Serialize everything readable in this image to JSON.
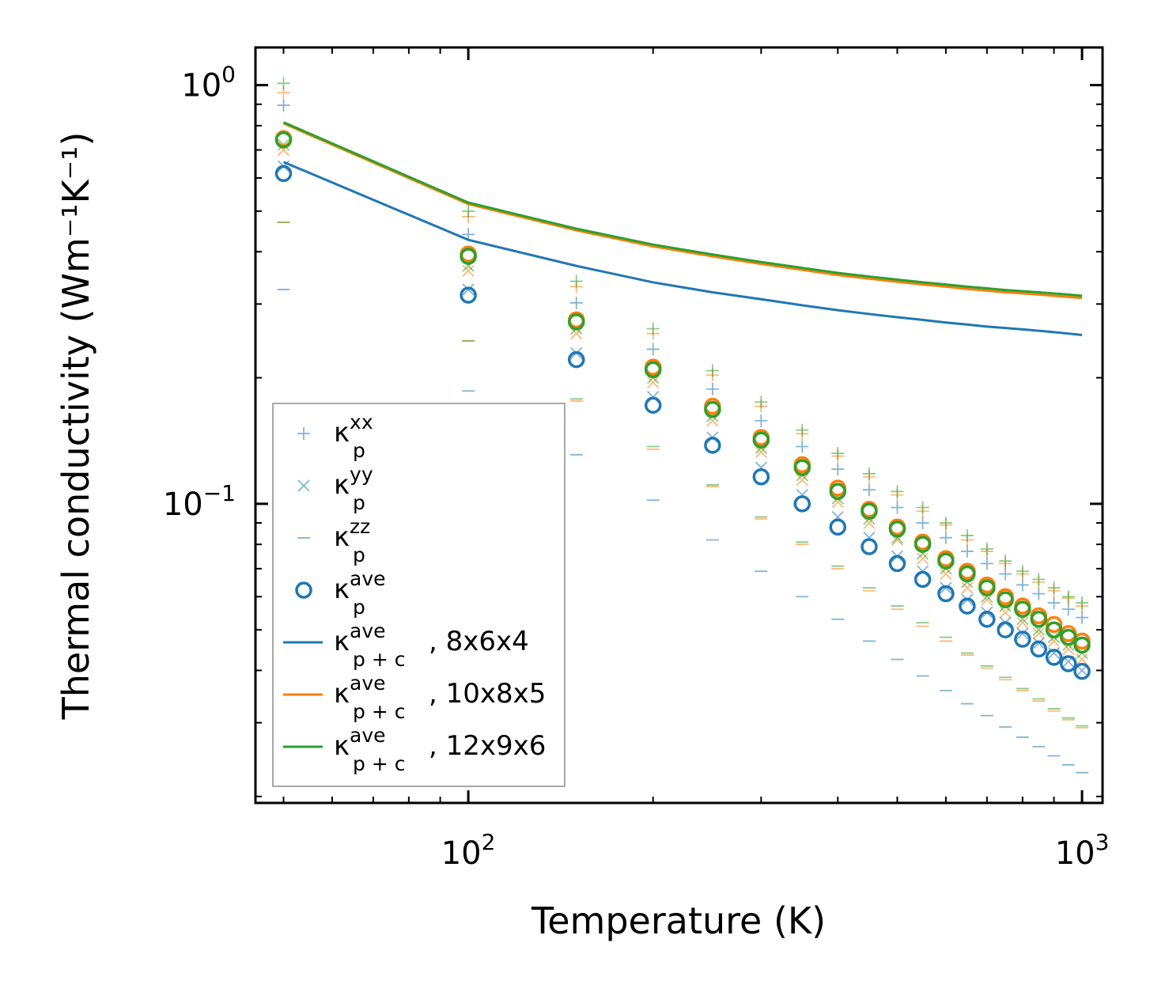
{
  "chart_data": {
    "type": "scatter+line",
    "xscale": "log",
    "yscale": "log",
    "xlabel": "Temperature (K)",
    "ylabel": "Thermal conductivity (Wm⁻¹K⁻¹)",
    "xlim": [
      45,
      1080
    ],
    "ylim": [
      0.0193,
      1.23
    ],
    "x_ticks": [
      {
        "value": 100,
        "base": "10",
        "exp": "2"
      },
      {
        "value": 1000,
        "base": "10",
        "exp": "3"
      }
    ],
    "y_ticks": [
      {
        "value": 1.0,
        "base": "10",
        "exp": "0"
      },
      {
        "value": 0.1,
        "base": "10",
        "exp": "−1"
      }
    ],
    "legend_position": "lower-left",
    "colors": {
      "blue": "#1f77b4",
      "orange": "#ff7f0e",
      "green": "#2ca02c"
    },
    "x": [
      50,
      100,
      150,
      200,
      250,
      300,
      350,
      400,
      450,
      500,
      550,
      600,
      650,
      700,
      750,
      800,
      850,
      900,
      950,
      1000
    ],
    "series": [
      {
        "name": "8x6x4",
        "color": "#1f77b4",
        "kind": "markers",
        "xx": [
          0.895,
          0.44,
          0.302,
          0.234,
          0.188,
          0.158,
          0.137,
          0.121,
          0.108,
          0.098,
          0.09,
          0.083,
          0.077,
          0.072,
          0.068,
          0.064,
          0.061,
          0.058,
          0.056,
          0.0535
        ],
        "yy": [
          0.64,
          0.325,
          0.229,
          0.18,
          0.144,
          0.122,
          0.105,
          0.093,
          0.083,
          0.075,
          0.069,
          0.063,
          0.059,
          0.055,
          0.052,
          0.049,
          0.0465,
          0.044,
          0.042,
          0.04
        ],
        "zz": [
          0.325,
          0.186,
          0.131,
          0.102,
          0.082,
          0.069,
          0.06,
          0.053,
          0.047,
          0.0425,
          0.0388,
          0.0358,
          0.0333,
          0.0312,
          0.0293,
          0.0277,
          0.0263,
          0.025,
          0.0238,
          0.0228
        ],
        "ave": [
          0.615,
          0.315,
          0.221,
          0.172,
          0.138,
          0.116,
          0.1,
          0.088,
          0.079,
          0.072,
          0.066,
          0.061,
          0.057,
          0.053,
          0.05,
          0.0475,
          0.045,
          0.043,
          0.0415,
          0.0398
        ]
      },
      {
        "name": "10x8x5",
        "color": "#ff7f0e",
        "kind": "markers",
        "xx": [
          0.96,
          0.485,
          0.33,
          0.255,
          0.203,
          0.171,
          0.147,
          0.13,
          0.116,
          0.105,
          0.096,
          0.089,
          0.082,
          0.077,
          0.072,
          0.068,
          0.065,
          0.062,
          0.0595,
          0.057
        ],
        "yy": [
          0.7,
          0.36,
          0.255,
          0.195,
          0.158,
          0.133,
          0.114,
          0.101,
          0.09,
          0.082,
          0.074,
          0.068,
          0.063,
          0.059,
          0.055,
          0.052,
          0.049,
          0.047,
          0.045,
          0.0425
        ],
        "zz": [
          0.47,
          0.245,
          0.176,
          0.135,
          0.11,
          0.092,
          0.08,
          0.07,
          0.062,
          0.056,
          0.051,
          0.047,
          0.0435,
          0.0405,
          0.038,
          0.0358,
          0.0338,
          0.032,
          0.0305,
          0.0292
        ],
        "ave": [
          0.745,
          0.395,
          0.275,
          0.212,
          0.171,
          0.144,
          0.124,
          0.109,
          0.097,
          0.088,
          0.081,
          0.074,
          0.069,
          0.064,
          0.06,
          0.057,
          0.054,
          0.0515,
          0.049,
          0.047
        ]
      },
      {
        "name": "12x9x6",
        "color": "#2ca02c",
        "kind": "markers",
        "xx": [
          1.01,
          0.5,
          0.34,
          0.262,
          0.208,
          0.175,
          0.15,
          0.132,
          0.118,
          0.107,
          0.098,
          0.09,
          0.084,
          0.078,
          0.073,
          0.069,
          0.066,
          0.063,
          0.06,
          0.058
        ],
        "yy": [
          0.72,
          0.37,
          0.262,
          0.2,
          0.162,
          0.136,
          0.117,
          0.103,
          0.092,
          0.083,
          0.076,
          0.07,
          0.065,
          0.06,
          0.057,
          0.053,
          0.05,
          0.048,
          0.046,
          0.044
        ],
        "zz": [
          0.47,
          0.245,
          0.178,
          0.137,
          0.111,
          0.093,
          0.081,
          0.071,
          0.063,
          0.057,
          0.052,
          0.048,
          0.044,
          0.041,
          0.0385,
          0.0362,
          0.0342,
          0.0324,
          0.0308,
          0.0295
        ],
        "ave": [
          0.74,
          0.39,
          0.272,
          0.209,
          0.168,
          0.142,
          0.122,
          0.107,
          0.096,
          0.087,
          0.08,
          0.073,
          0.068,
          0.063,
          0.059,
          0.056,
          0.053,
          0.05,
          0.048,
          0.046
        ]
      }
    ],
    "lines": [
      {
        "name": "8x6x4",
        "color": "#1f77b4",
        "values": [
          0.655,
          0.427,
          0.37,
          0.338,
          0.32,
          0.308,
          0.298,
          0.29,
          0.284,
          0.279,
          0.275,
          0.271,
          0.268,
          0.265,
          0.263,
          0.261,
          0.259,
          0.257,
          0.255,
          0.253
        ]
      },
      {
        "name": "10x8x5",
        "color": "#ff7f0e",
        "values": [
          0.81,
          0.52,
          0.45,
          0.412,
          0.39,
          0.374,
          0.362,
          0.352,
          0.345,
          0.339,
          0.334,
          0.33,
          0.326,
          0.323,
          0.32,
          0.318,
          0.316,
          0.314,
          0.312,
          0.31
        ]
      },
      {
        "name": "12x9x6",
        "color": "#2ca02c",
        "values": [
          0.815,
          0.524,
          0.454,
          0.416,
          0.394,
          0.378,
          0.366,
          0.356,
          0.349,
          0.343,
          0.338,
          0.334,
          0.33,
          0.327,
          0.324,
          0.322,
          0.32,
          0.318,
          0.316,
          0.314
        ]
      }
    ],
    "legend": [
      {
        "marker": "plus",
        "color": "#1f77b4",
        "base": "κ",
        "sup": "xx",
        "sub": "p",
        "suffix": ""
      },
      {
        "marker": "cross",
        "color": "#1f77b4",
        "base": "κ",
        "sup": "yy",
        "sub": "p",
        "suffix": ""
      },
      {
        "marker": "dash",
        "color": "#1f77b4",
        "base": "κ",
        "sup": "zz",
        "sub": "p",
        "suffix": ""
      },
      {
        "marker": "circle",
        "color": "#1f77b4",
        "base": "κ",
        "sup": "ave",
        "sub": "p",
        "suffix": ""
      },
      {
        "marker": "line",
        "color": "#1f77b4",
        "base": "κ",
        "sup": "ave",
        "sub": "p + c",
        "suffix": ", 8x6x4"
      },
      {
        "marker": "line",
        "color": "#ff7f0e",
        "base": "κ",
        "sup": "ave",
        "sub": "p + c",
        "suffix": ", 10x8x5"
      },
      {
        "marker": "line",
        "color": "#2ca02c",
        "base": "κ",
        "sup": "ave",
        "sub": "p + c",
        "suffix": ", 12x9x6"
      }
    ]
  }
}
